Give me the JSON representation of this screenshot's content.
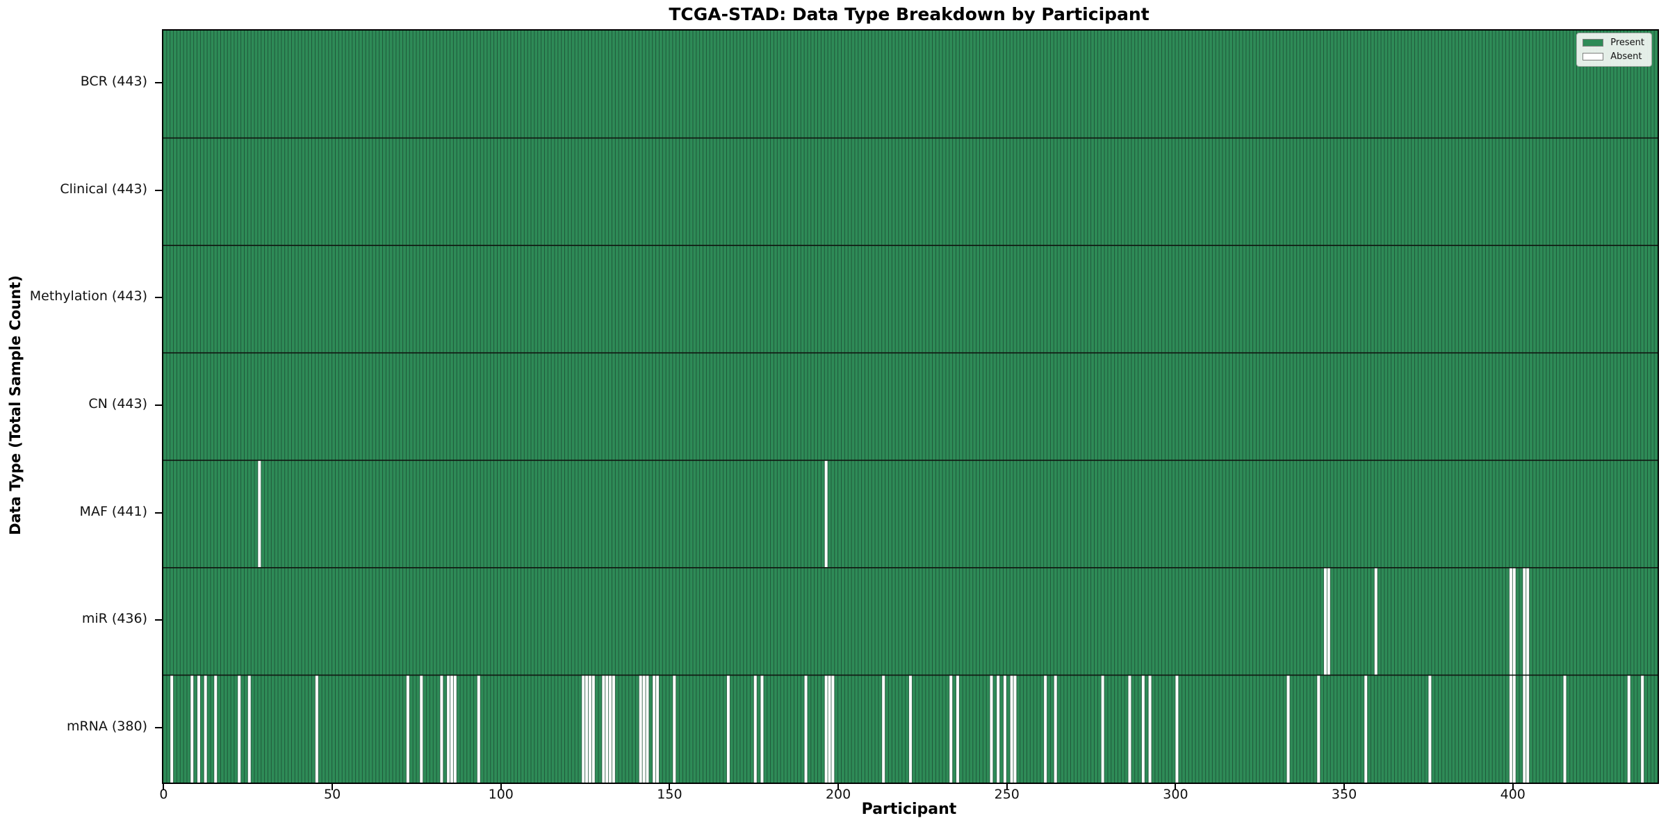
{
  "chart_data": {
    "type": "heatmap",
    "title": "TCGA-STAD: Data Type Breakdown by Participant",
    "xlabel": "Participant",
    "ylabel": "Data Type (Total Sample Count)",
    "n_participants": 443,
    "x_ticks": [
      0,
      50,
      100,
      150,
      200,
      250,
      300,
      350,
      400
    ],
    "colors": {
      "present": "#2e8b57",
      "absent": "#ffffff",
      "bar_edge": "#1b4a33",
      "row_divider": "#101510",
      "spine": "#000000"
    },
    "legend": [
      {
        "label": "Present",
        "color": "#2e8b57"
      },
      {
        "label": "Absent",
        "color": "#ffffff"
      }
    ],
    "rows": [
      {
        "name": "BCR",
        "total": 443,
        "label": "BCR (443)",
        "absent": []
      },
      {
        "name": "Clinical",
        "total": 443,
        "label": "Clinical (443)",
        "absent": []
      },
      {
        "name": "Methylation",
        "total": 443,
        "label": "Methylation (443)",
        "absent": []
      },
      {
        "name": "CN",
        "total": 443,
        "label": "CN (443)",
        "absent": []
      },
      {
        "name": "MAF",
        "total": 441,
        "label": "MAF (441)",
        "absent": [
          28,
          196
        ]
      },
      {
        "name": "miR",
        "total": 436,
        "label": "miR (436)",
        "absent": [
          344,
          345,
          359,
          399,
          400,
          403,
          404
        ]
      },
      {
        "name": "mRNA",
        "total": 380,
        "label": "mRNA (380)",
        "absent": [
          2,
          8,
          10,
          12,
          15,
          22,
          25,
          45,
          72,
          76,
          82,
          84,
          85,
          86,
          93,
          124,
          125,
          126,
          127,
          130,
          131,
          132,
          133,
          141,
          142,
          143,
          145,
          146,
          151,
          167,
          175,
          177,
          190,
          196,
          197,
          198,
          213,
          221,
          233,
          235,
          245,
          247,
          249,
          251,
          252,
          261,
          264,
          278,
          286,
          290,
          292,
          300,
          333,
          342,
          356,
          375,
          399,
          400,
          403,
          404,
          415,
          434,
          438
        ]
      }
    ]
  }
}
